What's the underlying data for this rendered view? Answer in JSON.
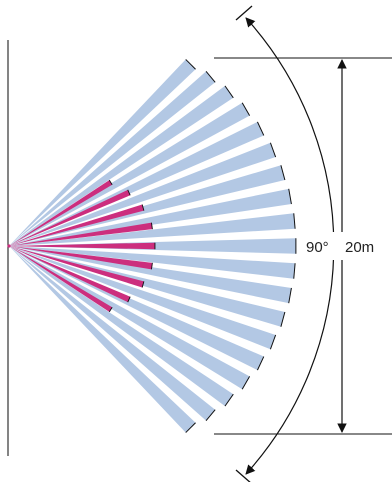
{
  "diagram": {
    "angle_label": "90°",
    "distance_label": "20m",
    "coverage_angle_deg": 90,
    "range_m": 20,
    "long_zone_beam_count": 19,
    "short_zone_beam_count": 9,
    "colors": {
      "long_zone": "#b3c8e4",
      "short_zone": "#cc2e7e",
      "line": "#111111",
      "wall": "#333333"
    }
  }
}
